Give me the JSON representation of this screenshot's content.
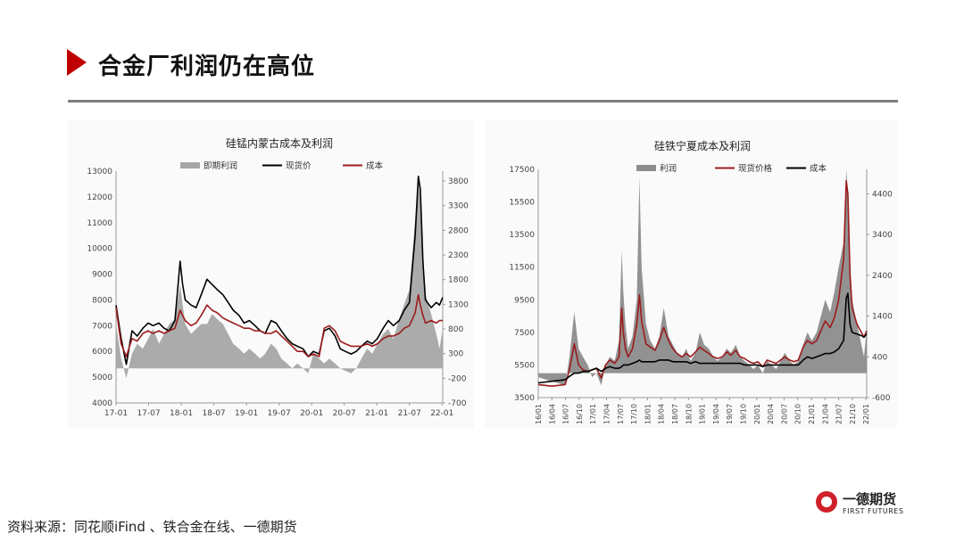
{
  "page": {
    "title": "合金厂利润仍在高位",
    "source": "资料来源：同花顺iFind 、铁合金在线、一德期货",
    "logo_cn": "一德期货",
    "logo_en": "FIRST FUTURES",
    "accent_color": "#c00000"
  },
  "chart_data": [
    {
      "type": "area",
      "title": "硅锰内蒙古成本及利润",
      "legend_position": "top",
      "x_ticks": [
        "17-01",
        "17-07",
        "18-01",
        "18-07",
        "19-01",
        "19-07",
        "20-01",
        "20-07",
        "21-01",
        "21-07",
        "22-01"
      ],
      "y_left": {
        "ticks": [
          4000,
          5000,
          6000,
          7000,
          8000,
          9000,
          10000,
          11000,
          12000,
          13000
        ],
        "range": [
          4000,
          13000
        ]
      },
      "y_right": {
        "ticks": [
          -700,
          -200,
          300,
          800,
          1300,
          1800,
          2300,
          2800,
          3300,
          3800
        ],
        "range": [
          -700,
          4000
        ]
      },
      "x_range": [
        2017.0,
        2022.1
      ],
      "series": [
        {
          "name": "即期利润",
          "axis": "right",
          "style": "area",
          "color": "#a6a6a6",
          "x": [
            2017.0,
            2017.08,
            2017.16,
            2017.25,
            2017.33,
            2017.42,
            2017.5,
            2017.58,
            2017.67,
            2017.75,
            2017.83,
            2017.92,
            2018.0,
            2018.04,
            2018.08,
            2018.17,
            2018.25,
            2018.33,
            2018.42,
            2018.5,
            2018.58,
            2018.67,
            2018.75,
            2018.83,
            2018.92,
            2019.0,
            2019.08,
            2019.17,
            2019.25,
            2019.33,
            2019.42,
            2019.5,
            2019.58,
            2019.67,
            2019.75,
            2019.83,
            2019.92,
            2020.0,
            2020.08,
            2020.17,
            2020.25,
            2020.33,
            2020.42,
            2020.5,
            2020.58,
            2020.67,
            2020.75,
            2020.83,
            2020.92,
            2021.0,
            2021.08,
            2021.17,
            2021.25,
            2021.33,
            2021.42,
            2021.5,
            2021.58,
            2021.67,
            2021.72,
            2021.75,
            2021.79,
            2021.83,
            2021.92,
            2022.0,
            2022.05,
            2022.1
          ],
          "values": [
            900,
            200,
            -200,
            300,
            500,
            400,
            600,
            800,
            500,
            700,
            900,
            1000,
            1700,
            1300,
            900,
            700,
            800,
            900,
            900,
            1100,
            1000,
            900,
            700,
            500,
            400,
            300,
            400,
            300,
            200,
            300,
            500,
            400,
            200,
            100,
            0,
            100,
            0,
            -100,
            300,
            200,
            100,
            200,
            100,
            0,
            -50,
            -100,
            0,
            200,
            400,
            300,
            500,
            700,
            800,
            600,
            1000,
            1300,
            1600,
            3000,
            3900,
            3200,
            2000,
            1500,
            1100,
            700,
            400,
            800
          ]
        },
        {
          "name": "现货价",
          "axis": "left",
          "style": "line",
          "color": "#000000",
          "x": [
            2017.0,
            2017.08,
            2017.16,
            2017.25,
            2017.33,
            2017.42,
            2017.5,
            2017.58,
            2017.67,
            2017.75,
            2017.83,
            2017.92,
            2018.0,
            2018.04,
            2018.08,
            2018.17,
            2018.25,
            2018.33,
            2018.42,
            2018.5,
            2018.58,
            2018.67,
            2018.75,
            2018.83,
            2018.92,
            2019.0,
            2019.08,
            2019.17,
            2019.25,
            2019.33,
            2019.42,
            2019.5,
            2019.58,
            2019.67,
            2019.75,
            2019.83,
            2019.92,
            2020.0,
            2020.08,
            2020.17,
            2020.25,
            2020.33,
            2020.42,
            2020.5,
            2020.58,
            2020.67,
            2020.75,
            2020.83,
            2020.92,
            2021.0,
            2021.08,
            2021.17,
            2021.25,
            2021.33,
            2021.42,
            2021.5,
            2021.58,
            2021.67,
            2021.72,
            2021.75,
            2021.79,
            2021.83,
            2021.92,
            2022.0,
            2022.05,
            2022.1
          ],
          "values": [
            7800,
            6500,
            5500,
            6800,
            6600,
            6900,
            7100,
            7000,
            7100,
            6900,
            6800,
            7200,
            9500,
            8600,
            8000,
            7800,
            7700,
            8200,
            8800,
            8600,
            8400,
            8200,
            7900,
            7600,
            7400,
            7100,
            7200,
            7000,
            6800,
            6700,
            7200,
            7100,
            6800,
            6500,
            6300,
            6200,
            6100,
            5800,
            6000,
            5900,
            6800,
            6900,
            6600,
            6100,
            6000,
            5900,
            6000,
            6200,
            6400,
            6300,
            6500,
            6900,
            7200,
            7000,
            7200,
            7600,
            7900,
            10500,
            12800,
            12300,
            9500,
            8000,
            7700,
            7900,
            7800,
            8100
          ]
        },
        {
          "name": "成本",
          "axis": "left",
          "style": "line",
          "color": "#9b1c1c",
          "x": [
            2017.0,
            2017.08,
            2017.16,
            2017.25,
            2017.33,
            2017.42,
            2017.5,
            2017.58,
            2017.67,
            2017.75,
            2017.83,
            2017.92,
            2018.0,
            2018.04,
            2018.08,
            2018.17,
            2018.25,
            2018.33,
            2018.42,
            2018.5,
            2018.58,
            2018.67,
            2018.75,
            2018.83,
            2018.92,
            2019.0,
            2019.08,
            2019.17,
            2019.25,
            2019.33,
            2019.42,
            2019.5,
            2019.58,
            2019.67,
            2019.75,
            2019.83,
            2019.92,
            2020.0,
            2020.08,
            2020.17,
            2020.25,
            2020.33,
            2020.42,
            2020.5,
            2020.58,
            2020.67,
            2020.75,
            2020.83,
            2020.92,
            2021.0,
            2021.08,
            2021.17,
            2021.25,
            2021.33,
            2021.42,
            2021.5,
            2021.58,
            2021.67,
            2021.72,
            2021.75,
            2021.79,
            2021.83,
            2021.92,
            2022.0,
            2022.05,
            2022.1
          ],
          "values": [
            7700,
            6300,
            5800,
            6500,
            6400,
            6700,
            6800,
            6700,
            6800,
            6700,
            6800,
            6900,
            7600,
            7400,
            7200,
            7000,
            7100,
            7400,
            7800,
            7600,
            7500,
            7300,
            7200,
            7100,
            7000,
            6900,
            6900,
            6800,
            6800,
            6700,
            6700,
            6800,
            6600,
            6400,
            6200,
            6000,
            6000,
            5800,
            5900,
            5800,
            6900,
            7000,
            6800,
            6400,
            6300,
            6200,
            6200,
            6200,
            6300,
            6200,
            6300,
            6500,
            6600,
            6600,
            6700,
            6900,
            7000,
            7500,
            8200,
            7800,
            7400,
            7100,
            7200,
            7100,
            7200,
            7200
          ]
        }
      ]
    },
    {
      "type": "area",
      "title": "硅铁宁夏成本及利润",
      "legend_position": "top",
      "x_ticks": [
        "16/01",
        "16/04",
        "16/07",
        "16/10",
        "17/01",
        "17/04",
        "17/07",
        "17/10",
        "18/01",
        "18/04",
        "18/07",
        "18/10",
        "19/01",
        "19/04",
        "19/07",
        "19/10",
        "20/01",
        "20/04",
        "20/07",
        "20/10",
        "21/01",
        "21/04",
        "21/07",
        "21/10",
        "22/01"
      ],
      "y_left": {
        "ticks": [
          3500,
          5500,
          7500,
          9500,
          11500,
          13500,
          15500,
          17500
        ],
        "range": [
          3500,
          17500
        ]
      },
      "y_right": {
        "ticks": [
          -600,
          400,
          1400,
          2400,
          3400,
          4400
        ],
        "range": [
          -600,
          5000
        ]
      },
      "x_range": [
        2016.0,
        2022.1
      ],
      "series": [
        {
          "name": "利润",
          "axis": "right",
          "style": "area",
          "color": "#8c8c8c",
          "x": [
            2016.0,
            2016.25,
            2016.5,
            2016.58,
            2016.67,
            2016.75,
            2016.83,
            2016.92,
            2017.0,
            2017.08,
            2017.17,
            2017.25,
            2017.33,
            2017.42,
            2017.5,
            2017.55,
            2017.58,
            2017.62,
            2017.67,
            2017.75,
            2017.83,
            2017.88,
            2017.92,
            2018.0,
            2018.08,
            2018.17,
            2018.25,
            2018.33,
            2018.42,
            2018.5,
            2018.58,
            2018.67,
            2018.75,
            2018.83,
            2018.92,
            2019.0,
            2019.08,
            2019.17,
            2019.25,
            2019.33,
            2019.42,
            2019.5,
            2019.58,
            2019.67,
            2019.75,
            2019.83,
            2019.92,
            2020.0,
            2020.08,
            2020.17,
            2020.25,
            2020.33,
            2020.42,
            2020.5,
            2020.58,
            2020.67,
            2020.75,
            2020.83,
            2020.92,
            2021.0,
            2021.08,
            2021.17,
            2021.25,
            2021.33,
            2021.42,
            2021.5,
            2021.58,
            2021.67,
            2021.72,
            2021.75,
            2021.79,
            2021.83,
            2021.92,
            2022.0,
            2022.05,
            2022.1
          ],
          "values": [
            -100,
            -200,
            -300,
            400,
            1500,
            600,
            400,
            200,
            -100,
            0,
            -300,
            200,
            400,
            300,
            800,
            3000,
            2000,
            1200,
            600,
            900,
            1800,
            4800,
            2600,
            1200,
            800,
            600,
            900,
            1600,
            900,
            700,
            500,
            400,
            600,
            300,
            500,
            1000,
            700,
            600,
            400,
            300,
            400,
            600,
            500,
            700,
            400,
            300,
            200,
            100,
            200,
            0,
            300,
            200,
            100,
            300,
            500,
            300,
            200,
            300,
            700,
            1000,
            800,
            1000,
            1400,
            1800,
            1500,
            2000,
            2600,
            3200,
            5000,
            4400,
            2800,
            1800,
            1200,
            700,
            400,
            1100
          ]
        },
        {
          "name": "现货价格",
          "axis": "left",
          "style": "line",
          "color": "#9b1c1c",
          "x": [
            2016.0,
            2016.25,
            2016.5,
            2016.58,
            2016.67,
            2016.75,
            2016.83,
            2016.92,
            2017.0,
            2017.08,
            2017.17,
            2017.25,
            2017.33,
            2017.42,
            2017.5,
            2017.55,
            2017.58,
            2017.62,
            2017.67,
            2017.75,
            2017.83,
            2017.88,
            2017.92,
            2018.0,
            2018.08,
            2018.17,
            2018.25,
            2018.33,
            2018.42,
            2018.5,
            2018.58,
            2018.67,
            2018.75,
            2018.83,
            2018.92,
            2019.0,
            2019.08,
            2019.17,
            2019.25,
            2019.33,
            2019.42,
            2019.5,
            2019.58,
            2019.67,
            2019.75,
            2019.83,
            2019.92,
            2020.0,
            2020.08,
            2020.17,
            2020.25,
            2020.33,
            2020.42,
            2020.5,
            2020.58,
            2020.67,
            2020.75,
            2020.83,
            2020.92,
            2021.0,
            2021.08,
            2021.17,
            2021.25,
            2021.33,
            2021.42,
            2021.5,
            2021.58,
            2021.67,
            2021.72,
            2021.75,
            2021.79,
            2021.83,
            2021.92,
            2022.0,
            2022.05,
            2022.1
          ],
          "values": [
            4300,
            4200,
            4300,
            5200,
            6800,
            5500,
            5200,
            5100,
            5200,
            5300,
            4700,
            5500,
            5800,
            5600,
            6000,
            9000,
            7500,
            6500,
            6000,
            6500,
            8000,
            9800,
            8200,
            6800,
            6600,
            6400,
            7000,
            7800,
            7000,
            6500,
            6200,
            6000,
            6200,
            6000,
            6300,
            6600,
            6400,
            6200,
            6000,
            5900,
            6000,
            6300,
            6100,
            6400,
            6000,
            5900,
            5700,
            5600,
            5700,
            5400,
            5800,
            5700,
            5600,
            5800,
            6000,
            5800,
            5700,
            5800,
            6600,
            7000,
            6800,
            7000,
            7600,
            8200,
            7800,
            8400,
            9500,
            12000,
            16800,
            16000,
            11000,
            9000,
            8000,
            7500,
            7200,
            7600
          ]
        },
        {
          "name": "成本",
          "axis": "left",
          "style": "line",
          "color": "#000000",
          "x": [
            2016.0,
            2016.25,
            2016.5,
            2016.58,
            2016.67,
            2016.75,
            2016.83,
            2016.92,
            2017.0,
            2017.08,
            2017.17,
            2017.25,
            2017.33,
            2017.42,
            2017.5,
            2017.55,
            2017.58,
            2017.62,
            2017.67,
            2017.75,
            2017.83,
            2017.88,
            2017.92,
            2018.0,
            2018.08,
            2018.17,
            2018.25,
            2018.33,
            2018.42,
            2018.5,
            2018.58,
            2018.67,
            2018.75,
            2018.83,
            2018.92,
            2019.0,
            2019.08,
            2019.17,
            2019.25,
            2019.33,
            2019.42,
            2019.5,
            2019.58,
            2019.67,
            2019.75,
            2019.83,
            2019.92,
            2020.0,
            2020.08,
            2020.17,
            2020.25,
            2020.33,
            2020.42,
            2020.5,
            2020.58,
            2020.67,
            2020.75,
            2020.83,
            2020.92,
            2021.0,
            2021.08,
            2021.17,
            2021.25,
            2021.33,
            2021.42,
            2021.5,
            2021.58,
            2021.67,
            2021.72,
            2021.75,
            2021.79,
            2021.83,
            2021.92,
            2022.0,
            2022.05,
            2022.1
          ],
          "values": [
            4400,
            4500,
            4600,
            4800,
            5000,
            5000,
            5100,
            5100,
            5200,
            5300,
            5100,
            5300,
            5400,
            5300,
            5300,
            5400,
            5500,
            5500,
            5500,
            5600,
            5700,
            5800,
            5700,
            5700,
            5700,
            5700,
            5800,
            5800,
            5800,
            5700,
            5700,
            5700,
            5700,
            5600,
            5700,
            5600,
            5600,
            5600,
            5600,
            5600,
            5600,
            5600,
            5600,
            5600,
            5600,
            5500,
            5500,
            5500,
            5500,
            5400,
            5500,
            5500,
            5500,
            5500,
            5500,
            5500,
            5500,
            5500,
            5800,
            6000,
            5900,
            6000,
            6100,
            6200,
            6200,
            6300,
            6500,
            7000,
            9600,
            9900,
            8000,
            7500,
            7400,
            7300,
            7200,
            7400
          ]
        }
      ]
    }
  ]
}
